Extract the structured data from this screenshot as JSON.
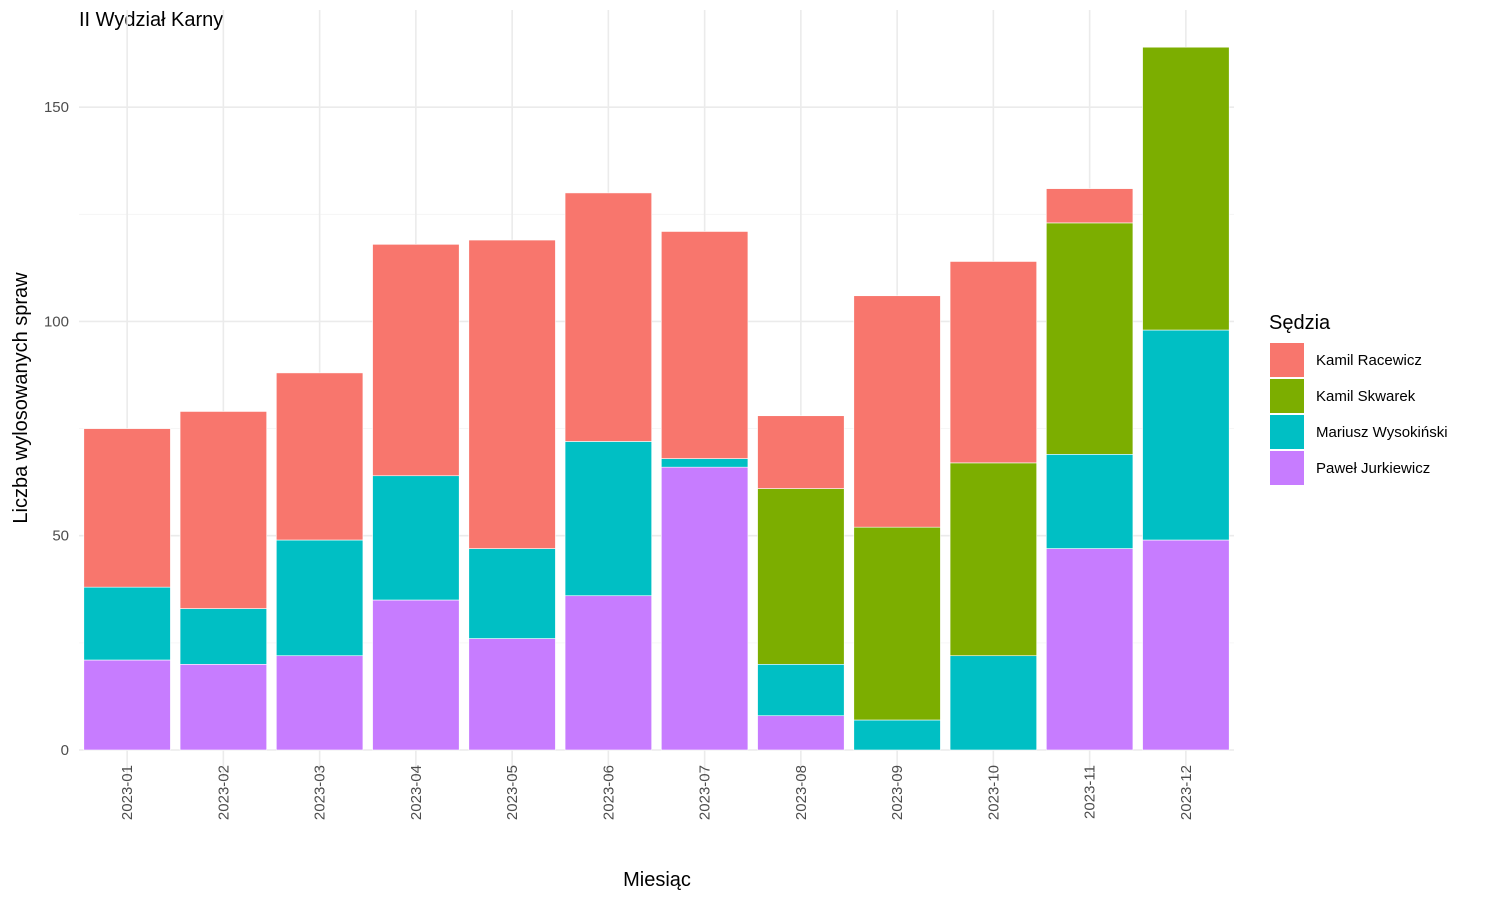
{
  "chart_data": {
    "type": "bar",
    "stacked": true,
    "title": "II Wydział Karny",
    "xlabel": "Miesiąc",
    "ylabel": "Liczba wylosowanych spraw",
    "ylim": [
      0,
      166
    ],
    "yticks": [
      0,
      50,
      100,
      150
    ],
    "grid": true,
    "categories": [
      "2023-01",
      "2023-02",
      "2023-03",
      "2023-04",
      "2023-05",
      "2023-06",
      "2023-07",
      "2023-08",
      "2023-09",
      "2023-10",
      "2023-11",
      "2023-12"
    ],
    "legend": {
      "title": "Sędzia",
      "position": "right"
    },
    "stack_order_bottom_to_top": [
      "Paweł Jurkiewicz",
      "Mariusz Wysokiński",
      "Kamil Skwarek",
      "Kamil Racewicz"
    ],
    "series": [
      {
        "name": "Kamil Racewicz",
        "color": "#F8766D",
        "values": [
          37,
          46,
          39,
          54,
          72,
          58,
          53,
          17,
          54,
          47,
          8,
          0
        ]
      },
      {
        "name": "Kamil Skwarek",
        "color": "#7CAE00",
        "values": [
          0,
          0,
          0,
          0,
          0,
          0,
          0,
          41,
          45,
          45,
          54,
          66
        ]
      },
      {
        "name": "Mariusz Wysokiński",
        "color": "#00BFC4",
        "values": [
          17,
          13,
          27,
          29,
          21,
          36,
          2,
          12,
          7,
          22,
          22,
          49
        ]
      },
      {
        "name": "Paweł Jurkiewicz",
        "color": "#C77CFF",
        "values": [
          21,
          20,
          22,
          35,
          26,
          36,
          66,
          8,
          0,
          0,
          47,
          49
        ]
      }
    ]
  }
}
